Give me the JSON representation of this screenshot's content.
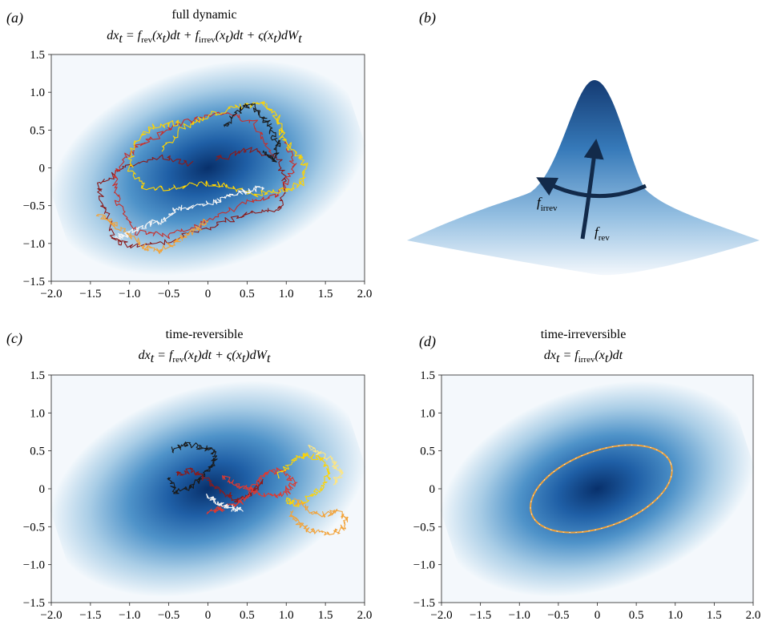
{
  "chart_data": [
    {
      "panel": "a",
      "panel_label": "(a)",
      "type": "scatter",
      "title": "full dynamic",
      "equation": {
        "prefix": "dx",
        "sub_t": "t",
        "eq": " = ",
        "f": "f",
        "rev": "rev",
        "irrev": "irrev",
        "arg_open": "(x",
        "arg_close": ")dt",
        "plus": " + ",
        "sigma": "ς(x",
        "sigma_close": ")dW"
      },
      "xlim": [
        -2.0,
        2.0
      ],
      "ylim": [
        -1.5,
        1.5
      ],
      "x_ticks": [
        "−2.0",
        "−1.5",
        "−1.0",
        "−0.5",
        "0",
        "0.5",
        "1.0",
        "1.5",
        "2.0"
      ],
      "y_ticks": [
        "1.5",
        "1.0",
        "0.5",
        "0",
        "−0.5",
        "−1.0",
        "−1.5"
      ],
      "background": "gaussian density heatmap, colormap Blues, tilted ellipse centered near (0, 0)",
      "trajectories": [
        {
          "color": "#8b1a1a",
          "points": [
            [
              -0.2,
              0.05
            ],
            [
              -0.6,
              0.15
            ],
            [
              -1.1,
              0.0
            ],
            [
              -1.4,
              -0.25
            ],
            [
              -1.3,
              -0.6
            ],
            [
              -1.2,
              -0.95
            ],
            [
              -0.9,
              -1.05
            ],
            [
              -0.4,
              -0.95
            ],
            [
              0.1,
              -0.75
            ],
            [
              0.5,
              -0.6
            ],
            [
              0.9,
              -0.55
            ],
            [
              1.0,
              -0.25
            ],
            [
              0.9,
              0.15
            ],
            [
              0.5,
              0.25
            ],
            [
              0.1,
              0.1
            ]
          ]
        },
        {
          "color": "#c9302c",
          "points": [
            [
              0.8,
              0.2
            ],
            [
              0.6,
              0.6
            ],
            [
              0.2,
              0.75
            ],
            [
              -0.3,
              0.6
            ],
            [
              -0.7,
              0.4
            ],
            [
              -1.0,
              0.2
            ],
            [
              -1.2,
              -0.1
            ],
            [
              -1.15,
              -0.45
            ],
            [
              -0.9,
              -0.85
            ],
            [
              -0.5,
              -0.9
            ],
            [
              0.0,
              -0.7
            ],
            [
              0.5,
              -0.45
            ],
            [
              0.9,
              -0.35
            ],
            [
              1.1,
              0.0
            ],
            [
              1.0,
              0.35
            ]
          ]
        },
        {
          "color": "#ffd400",
          "points": [
            [
              -0.6,
              0.2
            ],
            [
              -0.3,
              0.55
            ],
            [
              0.0,
              0.7
            ],
            [
              0.4,
              0.8
            ],
            [
              0.7,
              0.85
            ],
            [
              0.9,
              0.65
            ],
            [
              0.95,
              0.4
            ],
            [
              1.1,
              0.2
            ],
            [
              1.25,
              0.05
            ],
            [
              1.2,
              -0.2
            ],
            [
              0.95,
              -0.3
            ],
            [
              0.6,
              -0.35
            ],
            [
              0.3,
              -0.25
            ],
            [
              0.0,
              -0.2
            ],
            [
              -0.4,
              -0.25
            ],
            [
              -0.8,
              -0.3
            ],
            [
              -1.0,
              0.0
            ],
            [
              -0.95,
              0.3
            ],
            [
              -0.7,
              0.55
            ],
            [
              -0.35,
              0.6
            ]
          ]
        },
        {
          "color": "#f2a33a",
          "points": [
            [
              -1.4,
              -0.6
            ],
            [
              -1.2,
              -0.75
            ],
            [
              -1.0,
              -0.9
            ],
            [
              -0.8,
              -1.05
            ],
            [
              -0.6,
              -1.1
            ],
            [
              -0.4,
              -0.95
            ],
            [
              -0.2,
              -0.85
            ],
            [
              0.0,
              -0.7
            ]
          ]
        },
        {
          "color": "#1a1a1a",
          "points": [
            [
              0.2,
              0.55
            ],
            [
              0.4,
              0.75
            ],
            [
              0.55,
              0.85
            ],
            [
              0.7,
              0.7
            ],
            [
              0.8,
              0.5
            ],
            [
              0.9,
              0.3
            ],
            [
              0.85,
              0.1
            ],
            [
              0.7,
              0.2
            ]
          ]
        },
        {
          "color": "#f5f5f5",
          "points": [
            [
              -1.2,
              -0.95
            ],
            [
              -1.0,
              -0.85
            ],
            [
              -0.8,
              -0.75
            ],
            [
              -0.6,
              -0.7
            ],
            [
              -0.4,
              -0.55
            ],
            [
              -0.2,
              -0.5
            ],
            [
              0.1,
              -0.45
            ],
            [
              0.3,
              -0.35
            ],
            [
              0.5,
              -0.3
            ],
            [
              0.7,
              -0.25
            ]
          ]
        }
      ]
    },
    {
      "panel": "b",
      "panel_label": "(b)",
      "type": "surface",
      "description": "3D gaussian surface, Blues colormap",
      "annotations": {
        "f_irrev": {
          "main": "f",
          "sub": "irrev"
        },
        "f_rev": {
          "main": "f",
          "sub": "rev"
        }
      }
    },
    {
      "panel": "c",
      "panel_label": "(c)",
      "type": "scatter",
      "title": "time-reversible",
      "equation": {
        "prefix": "dx",
        "sub_t": "t",
        "eq": " = ",
        "f": "f",
        "rev": "rev",
        "arg_open": "(x",
        "arg_close": ")dt",
        "plus": " + ",
        "sigma": "ς(x",
        "sigma_close": ")dW"
      },
      "xlim": [
        -2.0,
        2.0
      ],
      "ylim": [
        -1.5,
        1.5
      ],
      "x_ticks": [
        "−2.0",
        "−1.5",
        "−1.0",
        "−0.5",
        "0",
        "0.5",
        "1.0",
        "1.5",
        "2.0"
      ],
      "y_ticks": [
        "1.5",
        "1.0",
        "0.5",
        "0",
        "−0.5",
        "−1.0",
        "−1.5"
      ],
      "trajectories": [
        {
          "color": "#1a1a1a",
          "points": [
            [
              -0.45,
              0.5
            ],
            [
              -0.3,
              0.6
            ],
            [
              -0.1,
              0.55
            ],
            [
              0.05,
              0.5
            ],
            [
              0.1,
              0.35
            ],
            [
              -0.05,
              0.2
            ],
            [
              -0.2,
              0.05
            ],
            [
              -0.4,
              -0.05
            ],
            [
              -0.5,
              0.15
            ]
          ]
        },
        {
          "color": "#8b1a1a",
          "points": [
            [
              -0.4,
              0.2
            ],
            [
              -0.2,
              0.25
            ],
            [
              0.0,
              0.1
            ],
            [
              0.2,
              -0.05
            ],
            [
              0.35,
              -0.15
            ],
            [
              0.5,
              -0.1
            ],
            [
              0.6,
              0.0
            ],
            [
              0.7,
              0.1
            ]
          ]
        },
        {
          "color": "#e0392f",
          "points": [
            [
              0.2,
              0.15
            ],
            [
              0.4,
              0.05
            ],
            [
              0.6,
              -0.05
            ],
            [
              0.8,
              -0.1
            ],
            [
              1.0,
              -0.05
            ],
            [
              1.1,
              0.1
            ],
            [
              0.95,
              0.25
            ],
            [
              0.75,
              0.2
            ],
            [
              0.55,
              0.0
            ],
            [
              0.4,
              -0.2
            ],
            [
              0.2,
              -0.25
            ],
            [
              0.0,
              -0.3
            ]
          ]
        },
        {
          "color": "#ffd400",
          "points": [
            [
              0.9,
              0.15
            ],
            [
              1.05,
              0.35
            ],
            [
              1.25,
              0.45
            ],
            [
              1.45,
              0.4
            ],
            [
              1.55,
              0.2
            ],
            [
              1.45,
              0.0
            ],
            [
              1.3,
              -0.1
            ],
            [
              1.15,
              -0.2
            ],
            [
              1.0,
              -0.15
            ]
          ]
        },
        {
          "color": "#f2a33a",
          "points": [
            [
              1.1,
              -0.15
            ],
            [
              1.25,
              -0.25
            ],
            [
              1.45,
              -0.35
            ],
            [
              1.65,
              -0.3
            ],
            [
              1.8,
              -0.4
            ],
            [
              1.7,
              -0.55
            ],
            [
              1.5,
              -0.6
            ],
            [
              1.3,
              -0.55
            ],
            [
              1.15,
              -0.45
            ],
            [
              1.05,
              -0.3
            ]
          ]
        },
        {
          "color": "#f5f5f5",
          "points": [
            [
              0.0,
              -0.1
            ],
            [
              0.15,
              -0.2
            ],
            [
              0.3,
              -0.25
            ],
            [
              0.45,
              -0.3
            ]
          ]
        },
        {
          "color": "#ffe680",
          "points": [
            [
              1.3,
              0.55
            ],
            [
              1.45,
              0.45
            ],
            [
              1.6,
              0.35
            ],
            [
              1.7,
              0.2
            ],
            [
              1.6,
              0.05
            ]
          ]
        }
      ]
    },
    {
      "panel": "d",
      "panel_label": "(d)",
      "type": "scatter",
      "title": "time-irreversible",
      "equation": {
        "prefix": "dx",
        "sub_t": "t",
        "eq": " = ",
        "f": "f",
        "irrev": "irrev",
        "arg_open": "(x",
        "arg_close": ")dt"
      },
      "xlim": [
        -2.0,
        2.0
      ],
      "ylim": [
        -1.5,
        1.5
      ],
      "x_ticks": [
        "−2.0",
        "−1.5",
        "−1.0",
        "−0.5",
        "0",
        "0.5",
        "1.0",
        "1.5",
        "2.0"
      ],
      "y_ticks": [
        "1.5",
        "1.0",
        "0.5",
        "0",
        "−0.5",
        "−1.0",
        "−1.5"
      ],
      "orbit": {
        "color": "#f2a33a",
        "center": [
          0.05,
          0.0
        ],
        "semi_major": 0.95,
        "semi_minor": 0.5,
        "angle_deg": 20
      }
    }
  ]
}
